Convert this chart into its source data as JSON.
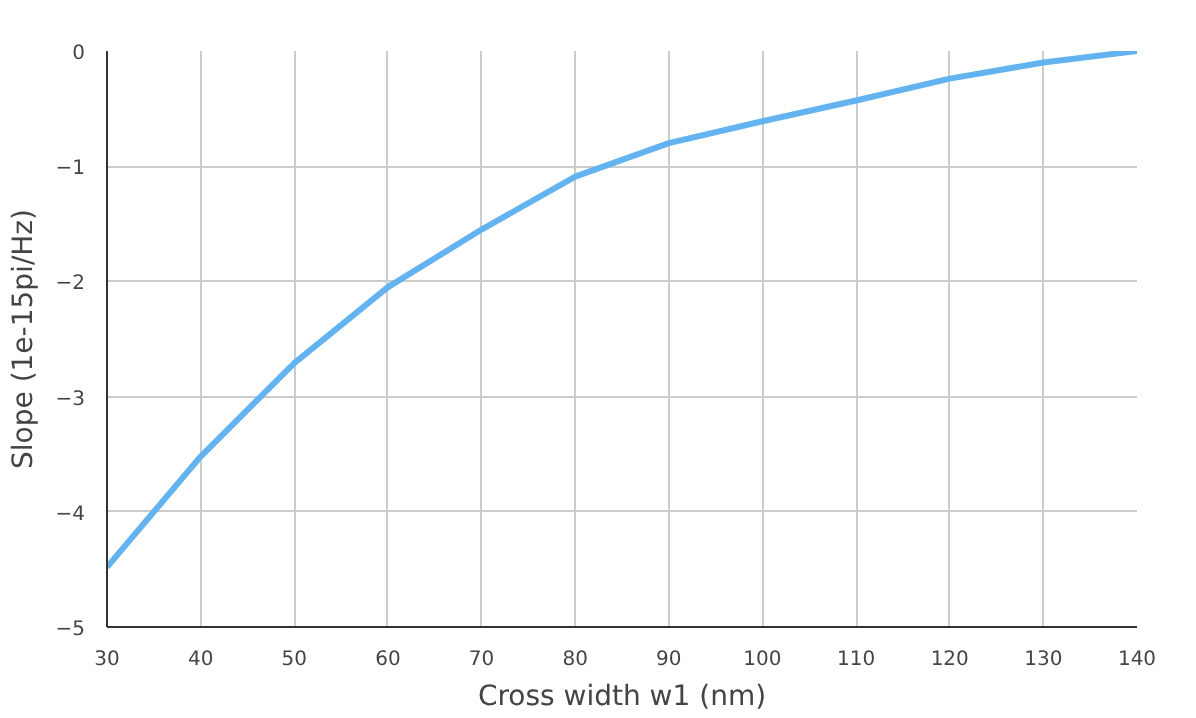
{
  "chart_data": {
    "type": "line",
    "xlabel": "Cross width w1 (nm)",
    "ylabel": "Slope (1e-15pi/Hz)",
    "x": [
      30,
      40,
      50,
      60,
      70,
      80,
      90,
      100,
      110,
      120,
      130,
      140
    ],
    "series": [
      {
        "color": "#63b3f0",
        "values": [
          -4.48,
          -3.52,
          -2.71,
          -2.05,
          -1.55,
          -1.09,
          -0.8,
          -0.61,
          -0.43,
          -0.24,
          -0.1,
          0
        ]
      }
    ],
    "xlim": [
      30,
      140
    ],
    "ylim": [
      -5,
      0
    ],
    "xticks": [
      30,
      40,
      50,
      60,
      70,
      80,
      90,
      100,
      110,
      120,
      130,
      140
    ],
    "yticks": [
      -5,
      -4,
      -3,
      -2,
      -1,
      0
    ],
    "grid": true,
    "marker": "none",
    "line_style": "solid"
  }
}
